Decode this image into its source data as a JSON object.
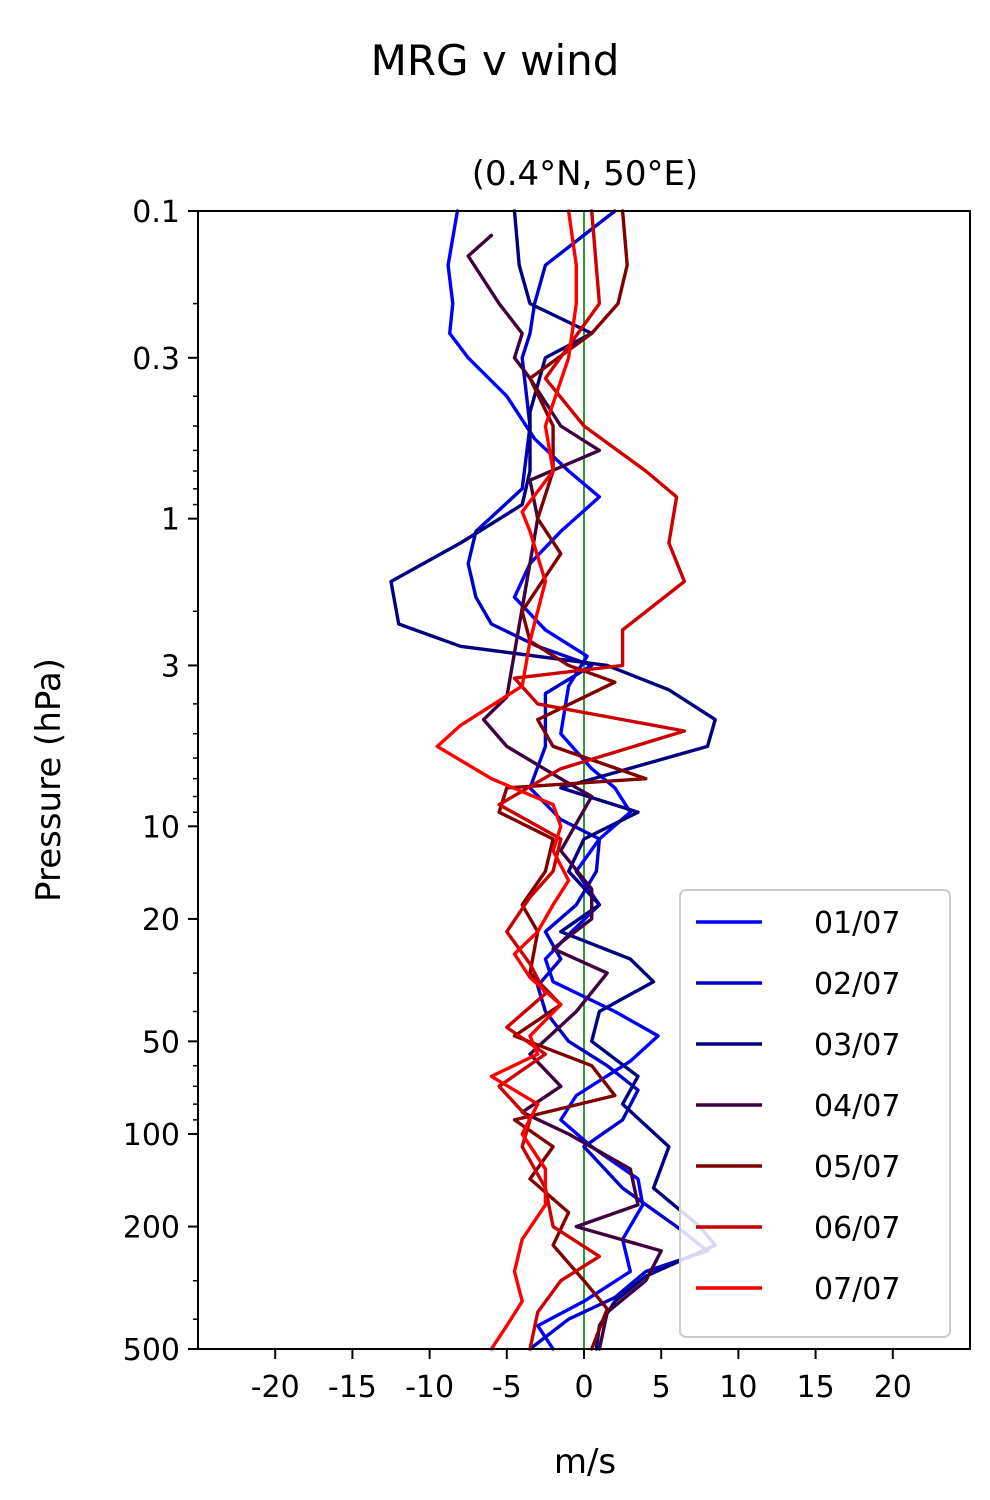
{
  "chart_data": {
    "type": "line",
    "title": "MRG v wind",
    "subtitle": "(0.4°N, 50°E)",
    "xlabel": "m/s",
    "ylabel": "Pressure (hPa)",
    "xlim": [
      -25,
      25
    ],
    "ylim": [
      500,
      0.1
    ],
    "yscale": "log",
    "x_ticks": [
      -20,
      -15,
      -10,
      -5,
      0,
      5,
      10,
      15,
      20
    ],
    "y_ticks": [
      0.1,
      0.3,
      1,
      3,
      10,
      20,
      50,
      100,
      200,
      500
    ],
    "grid": false,
    "legend_position": "lower-right",
    "reference_line": {
      "x": 0,
      "color": "#008000"
    },
    "series": [
      {
        "name": "01/07",
        "color": "#0000ff",
        "points": [
          [
            -8.2,
            0.1
          ],
          [
            -8.8,
            0.15
          ],
          [
            -8.5,
            0.2
          ],
          [
            -8.7,
            0.25
          ],
          [
            -7.5,
            0.3
          ],
          [
            -5.0,
            0.4
          ],
          [
            -3.2,
            0.55
          ],
          [
            -1.0,
            0.7
          ],
          [
            1.0,
            0.85
          ],
          [
            -1.5,
            1.1
          ],
          [
            -3.5,
            1.4
          ],
          [
            -4.5,
            1.8
          ],
          [
            -2.5,
            2.3
          ],
          [
            0.2,
            2.8
          ],
          [
            -1.0,
            3.5
          ],
          [
            -1.5,
            5.0
          ],
          [
            0.5,
            6.5
          ],
          [
            2.0,
            7.5
          ],
          [
            3.0,
            9.0
          ],
          [
            1.0,
            11
          ],
          [
            -0.5,
            14
          ],
          [
            1.0,
            18
          ],
          [
            -0.8,
            22
          ],
          [
            -2.5,
            27
          ],
          [
            -2.0,
            32
          ],
          [
            2.0,
            40
          ],
          [
            4.8,
            48
          ],
          [
            3.0,
            58
          ],
          [
            -0.5,
            75
          ],
          [
            -1.5,
            90
          ],
          [
            0.5,
            110
          ],
          [
            3.5,
            140
          ],
          [
            3.8,
            170
          ],
          [
            2.5,
            220
          ],
          [
            3.0,
            280
          ],
          [
            0.0,
            350
          ],
          [
            -3.0,
            420
          ],
          [
            -2.0,
            500
          ]
        ]
      },
      {
        "name": "02/07",
        "color": "#0000cc",
        "points": [
          [
            2.0,
            0.1
          ],
          [
            -2.5,
            0.15
          ],
          [
            -3.2,
            0.2
          ],
          [
            -3.5,
            0.25
          ],
          [
            -4.0,
            0.3
          ],
          [
            -3.5,
            0.5
          ],
          [
            -4.0,
            0.8
          ],
          [
            -7.0,
            1.1
          ],
          [
            -7.5,
            1.4
          ],
          [
            -7.0,
            1.8
          ],
          [
            -6.0,
            2.2
          ],
          [
            -3.0,
            2.6
          ],
          [
            0.5,
            3.0
          ],
          [
            -2.5,
            3.7
          ],
          [
            -2.5,
            5.5
          ],
          [
            -3.5,
            7.5
          ],
          [
            -1.5,
            9.5
          ],
          [
            1.0,
            11
          ],
          [
            0.8,
            14
          ],
          [
            -0.5,
            18
          ],
          [
            -2.5,
            22
          ],
          [
            -1.5,
            27
          ],
          [
            -3.0,
            33
          ],
          [
            -2.5,
            40
          ],
          [
            -1.0,
            50
          ],
          [
            1.5,
            60
          ],
          [
            3.5,
            72
          ],
          [
            2.5,
            90
          ],
          [
            0.0,
            110
          ],
          [
            2.5,
            150
          ],
          [
            6.0,
            200
          ],
          [
            8.0,
            240
          ],
          [
            4.0,
            280
          ],
          [
            2.0,
            340
          ],
          [
            -1.0,
            400
          ],
          [
            -3.5,
            500
          ]
        ]
      },
      {
        "name": "03/07",
        "color": "#000080",
        "points": [
          [
            -4.5,
            0.1
          ],
          [
            -4.2,
            0.15
          ],
          [
            -3.5,
            0.2
          ],
          [
            0.5,
            0.25
          ],
          [
            -2.5,
            0.3
          ],
          [
            -3.5,
            0.45
          ],
          [
            -3.5,
            0.7
          ],
          [
            -4.0,
            0.9
          ],
          [
            -8.0,
            1.2
          ],
          [
            -12.5,
            1.6
          ],
          [
            -12.0,
            2.2
          ],
          [
            -8.0,
            2.6
          ],
          [
            1.5,
            3.0
          ],
          [
            5.5,
            3.6
          ],
          [
            8.5,
            4.5
          ],
          [
            8.0,
            5.5
          ],
          [
            -1.5,
            7.5
          ],
          [
            3.5,
            9.0
          ],
          [
            0.0,
            11
          ],
          [
            -1.0,
            14
          ],
          [
            1.0,
            18
          ],
          [
            -1.5,
            22
          ],
          [
            3.0,
            27
          ],
          [
            4.5,
            32
          ],
          [
            1.0,
            40
          ],
          [
            0.5,
            50
          ],
          [
            3.5,
            65
          ],
          [
            2.5,
            80
          ],
          [
            5.5,
            110
          ],
          [
            4.5,
            150
          ],
          [
            7.5,
            200
          ],
          [
            8.5,
            230
          ],
          [
            4.0,
            290
          ],
          [
            2.0,
            350
          ],
          [
            1.0,
            420
          ],
          [
            0.8,
            500
          ]
        ]
      },
      {
        "name": "04/07",
        "color": "#400040",
        "points": [
          [
            -6.0,
            0.12
          ],
          [
            -7.5,
            0.14
          ],
          [
            -5.5,
            0.2
          ],
          [
            -4.0,
            0.25
          ],
          [
            -4.5,
            0.3
          ],
          [
            -3.5,
            0.35
          ],
          [
            -1.5,
            0.5
          ],
          [
            1.0,
            0.6
          ],
          [
            -3.5,
            0.75
          ],
          [
            -3.0,
            1.0
          ],
          [
            -5.0,
            3.8
          ],
          [
            -6.5,
            4.5
          ],
          [
            -5.0,
            5.5
          ],
          [
            -1.5,
            7.0
          ],
          [
            0.5,
            8.0
          ],
          [
            -1.5,
            12
          ],
          [
            0.5,
            16
          ],
          [
            0.5,
            20
          ],
          [
            -2.0,
            25
          ],
          [
            1.5,
            30
          ],
          [
            -0.5,
            40
          ],
          [
            -3.5,
            55
          ],
          [
            -1.5,
            70
          ],
          [
            -4.0,
            85
          ],
          [
            -1.0,
            100
          ],
          [
            3.0,
            130
          ],
          [
            3.5,
            170
          ],
          [
            -0.5,
            200
          ],
          [
            5.0,
            240
          ],
          [
            4.0,
            300
          ],
          [
            1.5,
            380
          ],
          [
            1.0,
            500
          ]
        ]
      },
      {
        "name": "05/07",
        "color": "#800000",
        "points": [
          [
            2.5,
            0.1
          ],
          [
            2.8,
            0.15
          ],
          [
            2.2,
            0.2
          ],
          [
            0.5,
            0.25
          ],
          [
            -3.5,
            0.35
          ],
          [
            -2.0,
            0.5
          ],
          [
            -2.0,
            0.7
          ],
          [
            -3.0,
            1.0
          ],
          [
            -1.5,
            1.3
          ],
          [
            -4.0,
            2.0
          ],
          [
            -3.5,
            2.5
          ],
          [
            -1.0,
            3.0
          ],
          [
            2.0,
            3.4
          ],
          [
            -3.0,
            4.5
          ],
          [
            -2.0,
            5.5
          ],
          [
            4.0,
            7.0
          ],
          [
            -5.0,
            7.5
          ],
          [
            -5.5,
            9.0
          ],
          [
            -2.0,
            11
          ],
          [
            -2.5,
            14
          ],
          [
            -4.0,
            18
          ],
          [
            -3.0,
            22
          ],
          [
            -3.5,
            30
          ],
          [
            -1.5,
            38
          ],
          [
            -4.5,
            48
          ],
          [
            0.5,
            60
          ],
          [
            2.0,
            75
          ],
          [
            -4.5,
            90
          ],
          [
            -2.0,
            110
          ],
          [
            -3.5,
            140
          ],
          [
            -1.0,
            180
          ],
          [
            -2.0,
            230
          ],
          [
            0.0,
            300
          ],
          [
            1.5,
            370
          ],
          [
            0.5,
            500
          ]
        ]
      },
      {
        "name": "06/07",
        "color": "#cc0000",
        "points": [
          [
            0.5,
            0.1
          ],
          [
            1.0,
            0.2
          ],
          [
            -2.5,
            0.35
          ],
          [
            0.0,
            0.5
          ],
          [
            4.0,
            0.7
          ],
          [
            6.0,
            0.85
          ],
          [
            5.5,
            1.2
          ],
          [
            6.5,
            1.6
          ],
          [
            2.5,
            2.3
          ],
          [
            2.5,
            3.0
          ],
          [
            -4.5,
            3.3
          ],
          [
            -3.0,
            4.0
          ],
          [
            6.5,
            4.9
          ],
          [
            -1.5,
            6.5
          ],
          [
            -5.5,
            8.5
          ],
          [
            -1.5,
            11
          ],
          [
            -2.0,
            14
          ],
          [
            -3.5,
            17
          ],
          [
            -5.0,
            22
          ],
          [
            -3.5,
            28
          ],
          [
            -2.5,
            35
          ],
          [
            -5.0,
            45
          ],
          [
            -2.5,
            55
          ],
          [
            -5.5,
            70
          ],
          [
            -3.5,
            90
          ],
          [
            -4.0,
            110
          ],
          [
            -2.5,
            150
          ],
          [
            -2.0,
            200
          ],
          [
            1.0,
            250
          ],
          [
            -1.5,
            300
          ],
          [
            -3.0,
            380
          ],
          [
            -3.5,
            500
          ]
        ]
      },
      {
        "name": "07/07",
        "color": "#ff0000",
        "points": [
          [
            -1.0,
            0.1
          ],
          [
            -0.5,
            0.15
          ],
          [
            -0.5,
            0.2
          ],
          [
            -1.0,
            0.3
          ],
          [
            -2.5,
            0.5
          ],
          [
            -2.0,
            0.7
          ],
          [
            -4.0,
            0.95
          ],
          [
            -3.5,
            1.1
          ],
          [
            -2.5,
            1.6
          ],
          [
            -3.0,
            2.0
          ],
          [
            -3.5,
            2.5
          ],
          [
            -4.0,
            3.5
          ],
          [
            -8.0,
            4.7
          ],
          [
            -9.5,
            5.5
          ],
          [
            -6.0,
            7.0
          ],
          [
            -2.0,
            8.5
          ],
          [
            -1.5,
            10
          ],
          [
            -2.0,
            12
          ],
          [
            -1.0,
            15
          ],
          [
            -2.0,
            18
          ],
          [
            -3.0,
            22
          ],
          [
            -4.5,
            26
          ],
          [
            -3.5,
            31
          ],
          [
            -1.5,
            38
          ],
          [
            -3.5,
            48
          ],
          [
            -3.0,
            55
          ],
          [
            -6.0,
            65
          ],
          [
            -3.0,
            80
          ],
          [
            -4.0,
            100
          ],
          [
            -2.5,
            130
          ],
          [
            -2.5,
            170
          ],
          [
            -4.0,
            220
          ],
          [
            -4.5,
            280
          ],
          [
            -4.0,
            350
          ],
          [
            -5.0,
            420
          ],
          [
            -6.0,
            500
          ]
        ]
      }
    ]
  }
}
